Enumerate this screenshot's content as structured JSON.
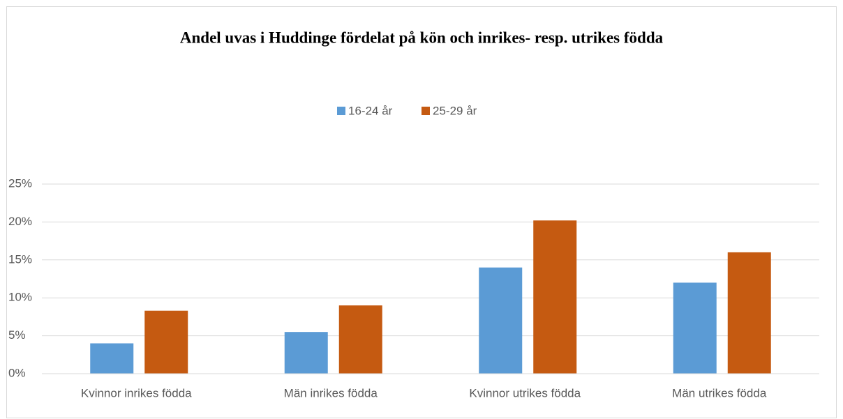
{
  "chart_data": {
    "type": "bar",
    "title": "Andel uvas i Huddinge fördelat på kön och inrikes- resp. utrikes födda",
    "categories": [
      "Kvinnor inrikes födda",
      "Män inrikes födda",
      "Kvinnor utrikes födda",
      "Män utrikes födda"
    ],
    "series": [
      {
        "name": "16-24 år",
        "color": "#5b9bd5",
        "values": [
          4,
          5.5,
          14,
          12
        ]
      },
      {
        "name": "25-29 år",
        "color": "#c55a11",
        "values": [
          8.3,
          9,
          20.2,
          16
        ]
      }
    ],
    "ylim": [
      0,
      25
    ],
    "yticks": [
      {
        "value": 0,
        "label": "0%"
      },
      {
        "value": 5,
        "label": "5%"
      },
      {
        "value": 10,
        "label": "10%"
      },
      {
        "value": 15,
        "label": "15%"
      },
      {
        "value": 20,
        "label": "20%"
      },
      {
        "value": 25,
        "label": "25%"
      }
    ],
    "grid": true,
    "legend": "top"
  }
}
